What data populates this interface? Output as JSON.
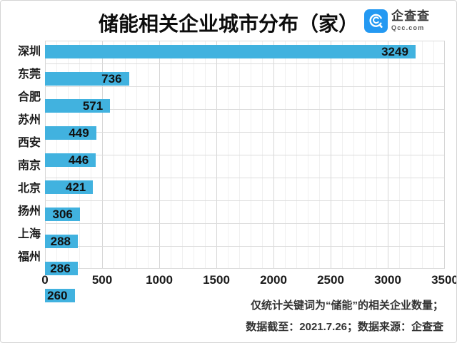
{
  "header": {
    "title": "储能相关企业城市分布（家）",
    "logo": {
      "name": "企查查",
      "domain": "Qcc.com",
      "brand_color": "#2499F2"
    }
  },
  "chart_data": {
    "type": "bar",
    "orientation": "horizontal",
    "title": "储能相关企业城市分布（家）",
    "categories": [
      "深圳",
      "东莞",
      "合肥",
      "苏州",
      "西安",
      "南京",
      "北京",
      "扬州",
      "上海",
      "福州"
    ],
    "values": [
      3249,
      736,
      571,
      449,
      446,
      421,
      306,
      288,
      286,
      260
    ],
    "xlim": [
      0,
      3500
    ],
    "tick_labels": [
      "0",
      "500",
      "1000",
      "1500",
      "2000",
      "2500",
      "3000",
      "3500"
    ],
    "bar_color": "#41B2DF",
    "grid": "on",
    "legend": "none",
    "value_label_position": "inside-end"
  },
  "footer": {
    "line1": "仅统计关键词为“储能”的相关企业数量；",
    "line2": "数据截至：2021.7.26；数据来源：企查查"
  }
}
